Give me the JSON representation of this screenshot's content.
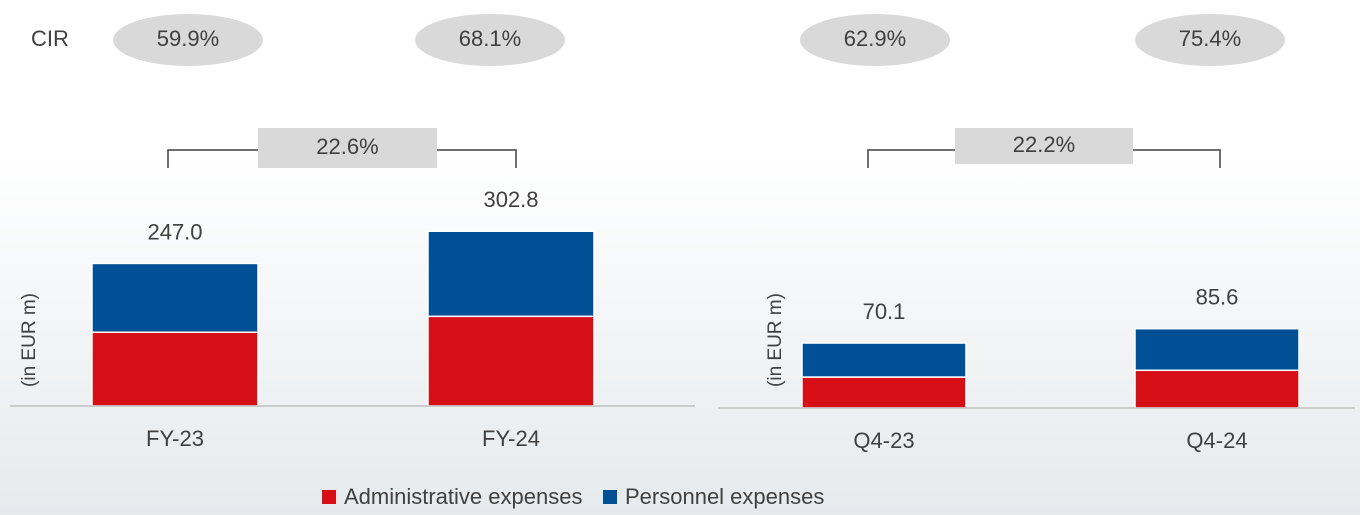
{
  "chart_data": [
    {
      "type": "bar",
      "stacked": true,
      "categories": [
        "FY-23",
        "FY-24"
      ],
      "series": [
        {
          "name": "Administrative expenses",
          "color": "#d50f15",
          "values": [
            127.8,
            155.4
          ]
        },
        {
          "name": "Personnel expenses",
          "color": "#005096",
          "values": [
            119.2,
            147.4
          ]
        }
      ],
      "totals": [
        247.0,
        302.8
      ],
      "total_labels": [
        "247.0",
        "302.8"
      ],
      "ylabel": "(in EUR m)",
      "ylim": [
        0,
        350
      ],
      "cir": {
        "label": "CIR",
        "values": [
          59.9,
          68.1
        ],
        "value_labels": [
          "59.9%",
          "68.1%"
        ]
      },
      "growth": {
        "value": 22.6,
        "label": "22.6%"
      }
    },
    {
      "type": "bar",
      "stacked": true,
      "categories": [
        "Q4-23",
        "Q4-24"
      ],
      "series": [
        {
          "name": "Administrative expenses",
          "color": "#d50f15",
          "values": [
            33.4,
            40.7
          ]
        },
        {
          "name": "Personnel expenses",
          "color": "#005096",
          "values": [
            36.7,
            44.9
          ]
        }
      ],
      "totals": [
        70.1,
        85.6
      ],
      "total_labels": [
        "70.1",
        "85.6"
      ],
      "ylabel": "(in EUR m)",
      "ylim": [
        0,
        218
      ],
      "cir": {
        "values": [
          62.9,
          75.4
        ],
        "value_labels": [
          "62.9%",
          "75.4%"
        ]
      },
      "growth": {
        "value": 22.2,
        "label": "22.2%"
      }
    }
  ]
}
